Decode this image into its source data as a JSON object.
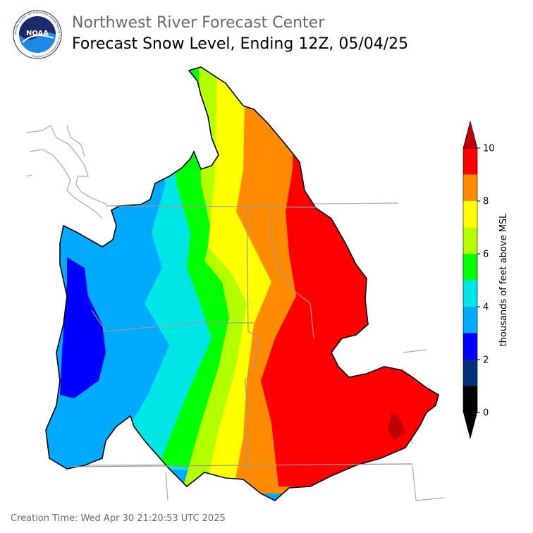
{
  "header": {
    "agency": "Northwest River Forecast Center",
    "title": "Forecast Snow Level, Ending 12Z, 05/04/25"
  },
  "logo": {
    "text": "NOAA",
    "ring_text": "NATIONAL OCEANIC AND ATMOSPHERIC ADMINISTRATION · U.S. DEPARTMENT OF COMMERCE",
    "colors": {
      "ring": "#ffffff",
      "top": "#1b2a6b",
      "bottom": "#1e88e5"
    }
  },
  "legend": {
    "label": "thousands of feet above MSL",
    "ticks": [
      "0",
      "2",
      "4",
      "6",
      "8",
      "10"
    ],
    "bins": [
      {
        "from": 0,
        "to": 1,
        "color": "#000000"
      },
      {
        "from": 1,
        "to": 2,
        "color": "#00307a"
      },
      {
        "from": 2,
        "to": 3,
        "color": "#0000ff"
      },
      {
        "from": 3,
        "to": 4,
        "color": "#00aaff"
      },
      {
        "from": 4,
        "to": 5,
        "color": "#00e6e6"
      },
      {
        "from": 5,
        "to": 6,
        "color": "#00ff00"
      },
      {
        "from": 6,
        "to": 7,
        "color": "#b4ff00"
      },
      {
        "from": 7,
        "to": 8,
        "color": "#ffff00"
      },
      {
        "from": 8,
        "to": 9,
        "color": "#ff8c00"
      },
      {
        "from": 9,
        "to": 10,
        "color": "#ff0000"
      }
    ],
    "over_color": "#c00000",
    "under_color": "#000000"
  },
  "footer": {
    "creation_time": "Creation Time: Wed Apr 30 21:20:53 UTC 2025"
  }
}
